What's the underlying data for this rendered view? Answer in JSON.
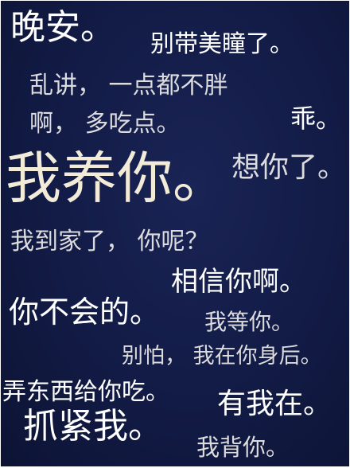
{
  "phrases": [
    "晚安。",
    "别带美瞳了。",
    "乱讲， 一点都不胖",
    "啊， 多吃点。",
    "乖。",
    "我养你。",
    "想你了。",
    "我到家了， 你呢？",
    "相信你啊。",
    "你不会的。",
    "我等你。",
    "别怕， 我在你身后。",
    "弄东西给你吃。",
    "有我在。",
    "抓紧我。",
    "我背你。"
  ],
  "colors": {
    "background": "#121b45",
    "text_white": "#ffffff",
    "text_cream": "#f1ebd8",
    "text_grey": "#dcdcde"
  }
}
